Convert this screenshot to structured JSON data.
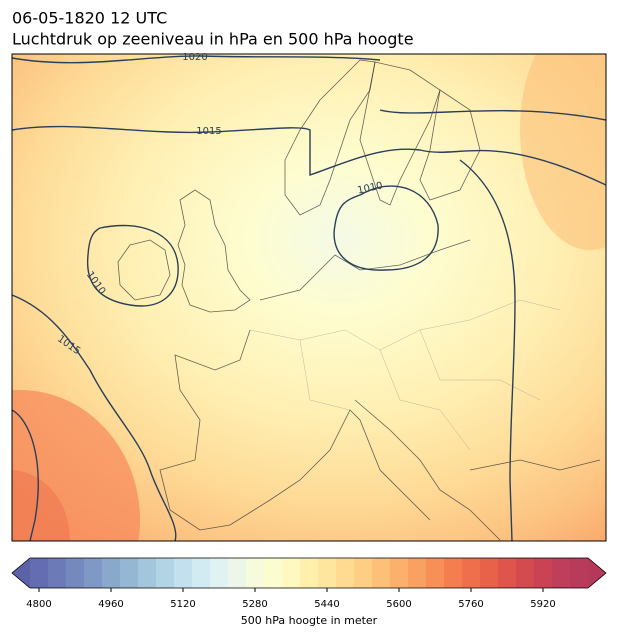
{
  "header": {
    "title": "06-05-1820 12 UTC",
    "subtitle": "Luchtdruk op zeeniveau in hPa en 500 hPa hoogte"
  },
  "contour_labels": [
    "1020",
    "1015",
    "1010",
    "1010",
    "1015"
  ],
  "colorbar": {
    "label": "500 hPa hoogte in meter",
    "clim": [
      4780,
      6020
    ],
    "ticks": [
      4800,
      4960,
      5120,
      5280,
      5440,
      5600,
      5760,
      5920
    ],
    "extend_colors": [
      "#5b62a8",
      "#b6395b"
    ],
    "colors": [
      "#646db2",
      "#6c7bb8",
      "#7589be",
      "#7f98c5",
      "#8aa7cc",
      "#96b7d3",
      "#a3c6dc",
      "#b2d4e5",
      "#c2e0ed",
      "#d2eaf2",
      "#e1f2f2",
      "#ecf7ea",
      "#f5fbdc",
      "#fcfdcf",
      "#fff8c0",
      "#fff0ae",
      "#fee69f",
      "#fedb91",
      "#fdce84",
      "#fcc078",
      "#fbb06c",
      "#f9a062",
      "#f78f58",
      "#f47e50",
      "#ef6e4b",
      "#e86149",
      "#df554b",
      "#d44b4f",
      "#c94354",
      "#bf3e59",
      "#b93b5b"
    ]
  }
}
